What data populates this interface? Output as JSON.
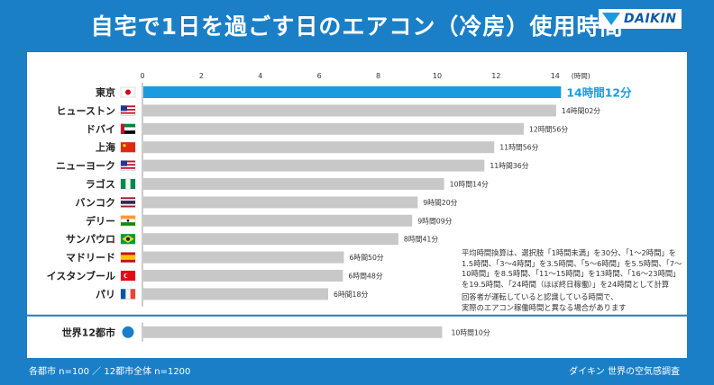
{
  "header": {
    "title": "自宅で1日を過ごす日のエアコン（冷房）使用時間",
    "logo_text": "DAIKIN"
  },
  "colors": {
    "frame_blue": "#1a7fc6",
    "highlight_bar": "#1a9be0",
    "bar_gray": "#c8c8c8"
  },
  "chart_data": {
    "type": "bar",
    "orientation": "horizontal",
    "x_unit_label": "(時間)",
    "xlim": [
      0,
      14.6
    ],
    "x_ticks": [
      0,
      2,
      4,
      6,
      8,
      10,
      12,
      14
    ],
    "categories": [
      "東京",
      "ヒューストン",
      "ドバイ",
      "上海",
      "ニューヨーク",
      "ラゴス",
      "バンコク",
      "デリー",
      "サンパウロ",
      "マドリード",
      "イスタンブール",
      "パリ"
    ],
    "flags": [
      "japan",
      "usa",
      "uae",
      "china",
      "usa",
      "nigeria",
      "thailand",
      "india",
      "brazil",
      "spain",
      "turkey",
      "france"
    ],
    "values": [
      14.2,
      14.033,
      12.933,
      11.933,
      11.6,
      10.233,
      9.333,
      9.15,
      8.683,
      6.833,
      6.8,
      6.3
    ],
    "value_labels": [
      "14時間12分",
      "14時間02分",
      "12時間56分",
      "11時間56分",
      "11時間36分",
      "10時間14分",
      "9時間20分",
      "9時間09分",
      "8時間41分",
      "6時間50分",
      "6時間48分",
      "6時間18分"
    ],
    "highlight_index": 0,
    "summary": {
      "label": "世界12都市",
      "icon": "globe-icon",
      "value": 10.167,
      "value_label": "10時間10分"
    },
    "annotations": [
      "平均時間換算は、選択肢「1時間未満」を30分、「1〜2時間」を",
      "1.5時間、「3〜4時間」を3.5時間、「5〜6時間」を5.5時間、「7〜",
      "10時間」を8.5時間、「11〜15時間」を13時間、「16〜23時間」",
      "を19.5時間、「24時間（ほぼ終日稼働）」を24時間として計算"
    ],
    "note2": [
      "回答者が運転していると認識している時間で、",
      "実際のエアコン稼働時間と異なる場合があります"
    ]
  },
  "footer": {
    "sample_note": "各都市 n=100 ／ 12都市全体 n=1200",
    "source": "ダイキン 世界の空気感調査"
  }
}
